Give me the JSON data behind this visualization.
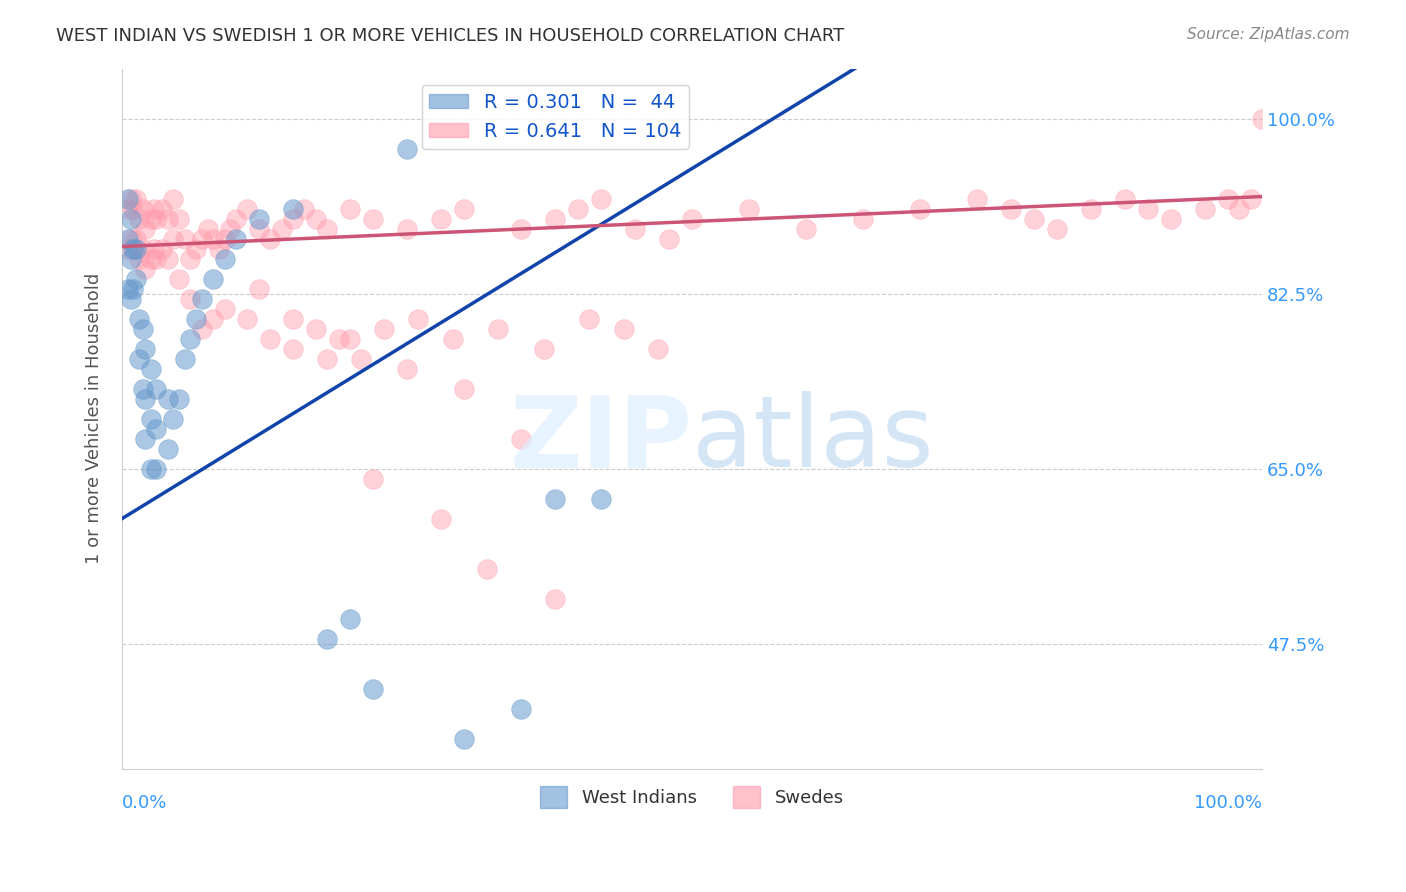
{
  "title": "WEST INDIAN VS SWEDISH 1 OR MORE VEHICLES IN HOUSEHOLD CORRELATION CHART",
  "source": "Source: ZipAtlas.com",
  "ylabel": "1 or more Vehicles in Household",
  "ytick_labels": [
    "47.5%",
    "65.0%",
    "82.5%",
    "100.0%"
  ],
  "ytick_values": [
    0.475,
    0.65,
    0.825,
    1.0
  ],
  "xlim": [
    0.0,
    1.0
  ],
  "ylim": [
    0.35,
    1.05
  ],
  "legend_blue_R": 0.301,
  "legend_blue_N": 44,
  "legend_pink_R": 0.641,
  "legend_pink_N": 104,
  "blue_color": "#6699CC",
  "pink_color": "#FF99AA",
  "blue_line_color": "#1144AA",
  "pink_line_color": "#CC5577",
  "blue_slope": 0.7,
  "blue_intercept": 0.6,
  "pink_slope": 0.05,
  "pink_intercept": 0.872,
  "blue_scatter_x": [
    0.005,
    0.005,
    0.005,
    0.008,
    0.008,
    0.008,
    0.01,
    0.01,
    0.012,
    0.012,
    0.015,
    0.015,
    0.018,
    0.018,
    0.02,
    0.02,
    0.02,
    0.025,
    0.025,
    0.025,
    0.03,
    0.03,
    0.03,
    0.04,
    0.04,
    0.045,
    0.05,
    0.055,
    0.06,
    0.065,
    0.07,
    0.08,
    0.09,
    0.1,
    0.12,
    0.15,
    0.18,
    0.2,
    0.22,
    0.25,
    0.3,
    0.35,
    0.38,
    0.42
  ],
  "blue_scatter_y": [
    0.92,
    0.88,
    0.83,
    0.9,
    0.86,
    0.82,
    0.87,
    0.83,
    0.87,
    0.84,
    0.8,
    0.76,
    0.79,
    0.73,
    0.77,
    0.72,
    0.68,
    0.75,
    0.7,
    0.65,
    0.73,
    0.69,
    0.65,
    0.72,
    0.67,
    0.7,
    0.72,
    0.76,
    0.78,
    0.8,
    0.82,
    0.84,
    0.86,
    0.88,
    0.9,
    0.91,
    0.48,
    0.5,
    0.43,
    0.97,
    0.38,
    0.41,
    0.62,
    0.62
  ],
  "pink_scatter_x": [
    0.005,
    0.005,
    0.008,
    0.008,
    0.01,
    0.01,
    0.012,
    0.012,
    0.015,
    0.015,
    0.018,
    0.018,
    0.02,
    0.02,
    0.025,
    0.025,
    0.028,
    0.028,
    0.03,
    0.03,
    0.035,
    0.035,
    0.04,
    0.04,
    0.045,
    0.045,
    0.05,
    0.055,
    0.06,
    0.065,
    0.07,
    0.075,
    0.08,
    0.085,
    0.09,
    0.095,
    0.1,
    0.11,
    0.12,
    0.13,
    0.14,
    0.15,
    0.16,
    0.17,
    0.18,
    0.2,
    0.22,
    0.25,
    0.28,
    0.3,
    0.35,
    0.38,
    0.4,
    0.42,
    0.45,
    0.48,
    0.5,
    0.55,
    0.6,
    0.65,
    0.7,
    0.75,
    0.78,
    0.8,
    0.82,
    0.85,
    0.88,
    0.9,
    0.92,
    0.95,
    0.97,
    0.98,
    0.99,
    1.0,
    0.3,
    0.35,
    0.22,
    0.28,
    0.32,
    0.38,
    0.08,
    0.12,
    0.15,
    0.18,
    0.2,
    0.25,
    0.05,
    0.06,
    0.07,
    0.09,
    0.11,
    0.13,
    0.15,
    0.17,
    0.19,
    0.21,
    0.23,
    0.26,
    0.29,
    0.33,
    0.37,
    0.41,
    0.44,
    0.47
  ],
  "pink_scatter_y": [
    0.87,
    0.91,
    0.88,
    0.92,
    0.87,
    0.91,
    0.88,
    0.92,
    0.86,
    0.9,
    0.87,
    0.91,
    0.85,
    0.89,
    0.86,
    0.9,
    0.87,
    0.91,
    0.86,
    0.9,
    0.87,
    0.91,
    0.86,
    0.9,
    0.88,
    0.92,
    0.9,
    0.88,
    0.86,
    0.87,
    0.88,
    0.89,
    0.88,
    0.87,
    0.88,
    0.89,
    0.9,
    0.91,
    0.89,
    0.88,
    0.89,
    0.9,
    0.91,
    0.9,
    0.89,
    0.91,
    0.9,
    0.89,
    0.9,
    0.91,
    0.89,
    0.9,
    0.91,
    0.92,
    0.89,
    0.88,
    0.9,
    0.91,
    0.89,
    0.9,
    0.91,
    0.92,
    0.91,
    0.9,
    0.89,
    0.91,
    0.92,
    0.91,
    0.9,
    0.91,
    0.92,
    0.91,
    0.92,
    1.0,
    0.73,
    0.68,
    0.64,
    0.6,
    0.55,
    0.52,
    0.8,
    0.83,
    0.8,
    0.76,
    0.78,
    0.75,
    0.84,
    0.82,
    0.79,
    0.81,
    0.8,
    0.78,
    0.77,
    0.79,
    0.78,
    0.76,
    0.79,
    0.8,
    0.78,
    0.79,
    0.77,
    0.8,
    0.79,
    0.77
  ]
}
